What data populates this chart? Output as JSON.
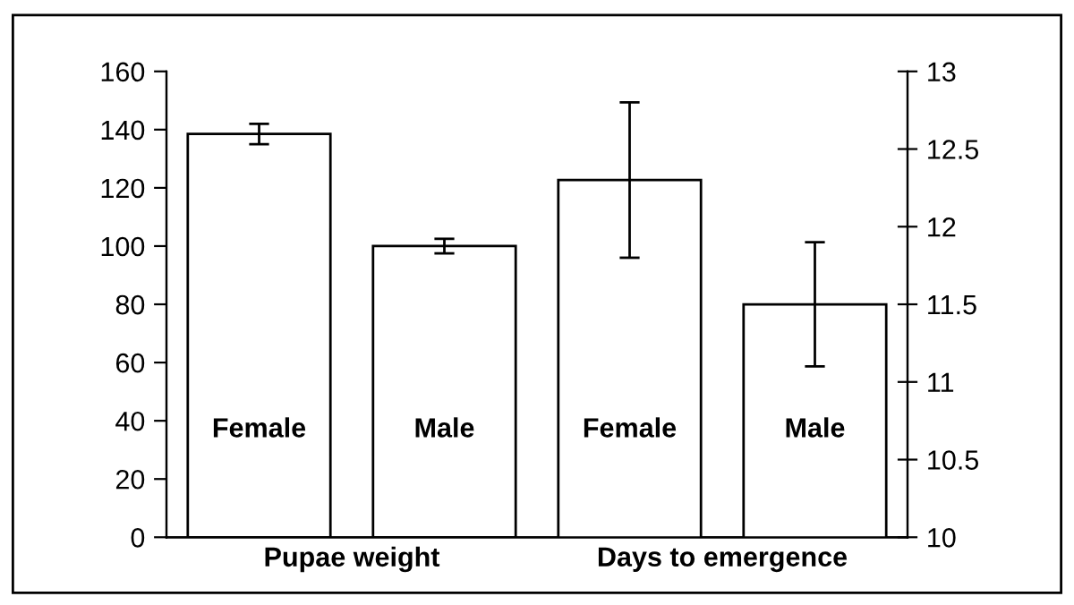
{
  "chart_data": {
    "type": "bar",
    "categories": [
      "Female",
      "Male",
      "Female",
      "Male"
    ],
    "series": [
      {
        "color": "#ffffff",
        "values": [
          138.5,
          100,
          null,
          null
        ],
        "errors": [
          3.5,
          2.5,
          null,
          null
        ]
      },
      {
        "color": "#ffffff",
        "axis": "y2",
        "values": [
          null,
          null,
          12.3,
          11.5
        ],
        "errors": [
          null,
          null,
          0.5,
          0.4
        ]
      }
    ],
    "ylim": [
      0,
      160
    ],
    "yticks": [
      0,
      20,
      40,
      60,
      80,
      100,
      120,
      140,
      160
    ],
    "y2lim": [
      10,
      13
    ],
    "y2ticks": [
      10,
      10.5,
      11,
      11.5,
      12,
      12.5,
      13
    ],
    "annotations": [
      "Pupae weight",
      "Days to emergence"
    ],
    "grid": false,
    "legend": false
  }
}
